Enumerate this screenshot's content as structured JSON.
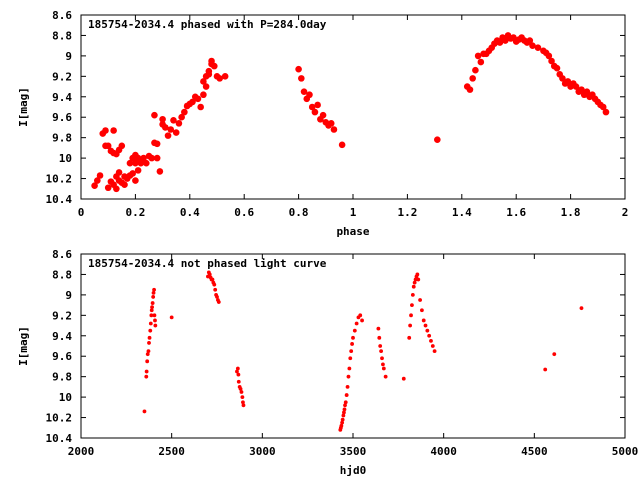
{
  "colors": {
    "points": "#ff0000",
    "axes": "#000000",
    "background": "#ffffff"
  },
  "chart_data": [
    {
      "type": "scatter",
      "title": "185754-2034.4 phased with P=284.0day",
      "xlabel": "phase",
      "ylabel": "I[mag]",
      "xlim": [
        0,
        2
      ],
      "ylim": [
        10.4,
        8.6
      ],
      "y_inverted": true,
      "grid": false,
      "xticks": [
        0,
        0.2,
        0.4,
        0.6,
        0.8,
        1,
        1.2,
        1.4,
        1.6,
        1.8,
        2
      ],
      "xtick_labels": [
        "0",
        "0.2",
        "0.4",
        "0.6",
        "0.8",
        "1",
        "1.2",
        "1.4",
        "1.6",
        "1.8",
        "2"
      ],
      "yticks": [
        8.6,
        8.8,
        9,
        9.2,
        9.4,
        9.6,
        9.8,
        10,
        10.2,
        10.4
      ],
      "ytick_labels": [
        "8.6",
        "8.8",
        "9",
        "9.2",
        "9.4",
        "9.6",
        "9.8",
        "10",
        "10.2",
        "10.4"
      ],
      "marker": "filled-circle-large",
      "series": [
        {
          "x": [
            0.05,
            0.06,
            0.07,
            0.08,
            0.09,
            0.09,
            0.1,
            0.1,
            0.11,
            0.11,
            0.12,
            0.12,
            0.12,
            0.13,
            0.13,
            0.13,
            0.14,
            0.14,
            0.14,
            0.15,
            0.15,
            0.16,
            0.16,
            0.17,
            0.18,
            0.18,
            0.19,
            0.19,
            0.2,
            0.2,
            0.2,
            0.21,
            0.21,
            0.22,
            0.22,
            0.23,
            0.24,
            0.25,
            0.26,
            0.27,
            0.27,
            0.28,
            0.28,
            0.29,
            0.3,
            0.3,
            0.31,
            0.32,
            0.33,
            0.34,
            0.35,
            0.36,
            0.37,
            0.38,
            0.39,
            0.4,
            0.41,
            0.42,
            0.43,
            0.44,
            0.45,
            0.45,
            0.46,
            0.46,
            0.47,
            0.47,
            0.48,
            0.48,
            0.49,
            0.5,
            0.51,
            0.53,
            0.8,
            0.81,
            0.82,
            0.83,
            0.84,
            0.85,
            0.86,
            0.87,
            0.88,
            0.89,
            0.9,
            0.91,
            0.92,
            0.93,
            0.96,
            1.31,
            1.42,
            1.43,
            1.44,
            1.45,
            1.46,
            1.47,
            1.48,
            1.49,
            1.5,
            1.51,
            1.52,
            1.53,
            1.54,
            1.55,
            1.56,
            1.57,
            1.58,
            1.59,
            1.6,
            1.61,
            1.62,
            1.63,
            1.64,
            1.65,
            1.66,
            1.68,
            1.7,
            1.71,
            1.72,
            1.73,
            1.74,
            1.75,
            1.76,
            1.77,
            1.78,
            1.79,
            1.8,
            1.81,
            1.82,
            1.83,
            1.84,
            1.85,
            1.86,
            1.87,
            1.88,
            1.89,
            1.9,
            1.91,
            1.92,
            1.93
          ],
          "y": [
            10.27,
            10.22,
            10.17,
            9.76,
            9.88,
            9.73,
            10.29,
            9.88,
            10.23,
            9.93,
            10.26,
            9.95,
            9.73,
            10.3,
            10.18,
            9.96,
            10.22,
            10.14,
            9.92,
            10.24,
            9.88,
            10.26,
            10.18,
            10.2,
            10.17,
            10.05,
            10.15,
            10.0,
            10.05,
            9.97,
            10.22,
            10.0,
            10.12,
            10.05,
            10.02,
            10.0,
            10.05,
            9.98,
            10.0,
            9.85,
            9.58,
            10.0,
            9.86,
            10.13,
            9.67,
            9.62,
            9.7,
            9.78,
            9.72,
            9.63,
            9.75,
            9.66,
            9.6,
            9.55,
            9.49,
            9.47,
            9.45,
            9.4,
            9.42,
            9.5,
            9.38,
            9.25,
            9.3,
            9.2,
            9.15,
            9.18,
            9.08,
            9.05,
            9.1,
            9.2,
            9.22,
            9.2,
            9.13,
            9.22,
            9.35,
            9.42,
            9.38,
            9.5,
            9.55,
            9.48,
            9.62,
            9.58,
            9.65,
            9.68,
            9.66,
            9.72,
            9.87,
            9.82,
            9.3,
            9.33,
            9.22,
            9.14,
            9.0,
            9.06,
            8.98,
            8.98,
            8.95,
            8.92,
            8.88,
            8.85,
            8.87,
            8.82,
            8.85,
            8.8,
            8.83,
            8.82,
            8.86,
            8.84,
            8.82,
            8.85,
            8.87,
            8.85,
            8.9,
            8.92,
            8.95,
            8.97,
            9.0,
            9.05,
            9.1,
            9.12,
            9.18,
            9.22,
            9.27,
            9.25,
            9.3,
            9.27,
            9.3,
            9.35,
            9.33,
            9.38,
            9.35,
            9.4,
            9.38,
            9.42,
            9.45,
            9.48,
            9.5,
            9.55
          ]
        }
      ]
    },
    {
      "type": "scatter",
      "title": "185754-2034.4 not phased light curve",
      "xlabel": "hjd0",
      "ylabel": "I[mag]",
      "xlim": [
        2000,
        5000
      ],
      "ylim": [
        10.4,
        8.6
      ],
      "y_inverted": true,
      "grid": false,
      "xticks": [
        2000,
        2500,
        3000,
        3500,
        4000,
        4500,
        5000
      ],
      "xtick_labels": [
        "2000",
        "2500",
        "3000",
        "3500",
        "4000",
        "4500",
        "5000"
      ],
      "yticks": [
        8.6,
        8.8,
        9,
        9.2,
        9.4,
        9.6,
        9.8,
        10,
        10.2,
        10.4
      ],
      "ytick_labels": [
        "8.6",
        "8.8",
        "9",
        "9.2",
        "9.4",
        "9.6",
        "9.8",
        "10",
        "10.2",
        "10.4"
      ],
      "marker": "filled-circle-small",
      "series": [
        {
          "x": [
            2350,
            2360,
            2362,
            2365,
            2368,
            2372,
            2375,
            2378,
            2382,
            2385,
            2388,
            2390,
            2392,
            2395,
            2398,
            2400,
            2403,
            2405,
            2408,
            2410,
            2500,
            2700,
            2705,
            2710,
            2715,
            2720,
            2725,
            2730,
            2735,
            2740,
            2745,
            2750,
            2755,
            2760,
            2860,
            2865,
            2868,
            2870,
            2875,
            2880,
            2885,
            2890,
            2893,
            2896,
            3430,
            3433,
            3436,
            3440,
            3443,
            3447,
            3450,
            3453,
            3456,
            3460,
            3465,
            3470,
            3475,
            3480,
            3485,
            3490,
            3495,
            3500,
            3510,
            3520,
            3530,
            3540,
            3550,
            3640,
            3645,
            3650,
            3655,
            3660,
            3665,
            3670,
            3680,
            3780,
            3810,
            3815,
            3820,
            3825,
            3830,
            3835,
            3840,
            3845,
            3850,
            3855,
            3860,
            3870,
            3880,
            3890,
            3900,
            3910,
            3920,
            3930,
            3940,
            3950,
            4560,
            4610,
            4760
          ],
          "y": [
            10.14,
            9.8,
            9.75,
            9.65,
            9.58,
            9.55,
            9.47,
            9.42,
            9.35,
            9.28,
            9.2,
            9.15,
            9.12,
            9.08,
            9.02,
            8.98,
            8.95,
            9.2,
            9.25,
            9.3,
            9.22,
            8.82,
            8.78,
            8.8,
            8.83,
            8.85,
            8.85,
            8.88,
            8.9,
            8.95,
            9.0,
            9.02,
            9.05,
            9.07,
            9.75,
            9.72,
            9.78,
            9.85,
            9.9,
            9.92,
            9.95,
            10.0,
            10.05,
            10.08,
            10.32,
            10.3,
            10.28,
            10.25,
            10.22,
            10.18,
            10.15,
            10.12,
            10.08,
            10.05,
            9.98,
            9.9,
            9.8,
            9.72,
            9.62,
            9.55,
            9.48,
            9.42,
            9.35,
            9.28,
            9.22,
            9.2,
            9.25,
            9.33,
            9.42,
            9.5,
            9.55,
            9.62,
            9.68,
            9.72,
            9.8,
            9.82,
            9.42,
            9.3,
            9.2,
            9.1,
            9.0,
            8.92,
            8.88,
            8.85,
            8.82,
            8.8,
            8.85,
            9.05,
            9.15,
            9.25,
            9.3,
            9.35,
            9.4,
            9.45,
            9.5,
            9.55,
            9.73,
            9.58,
            9.13
          ]
        }
      ]
    }
  ]
}
